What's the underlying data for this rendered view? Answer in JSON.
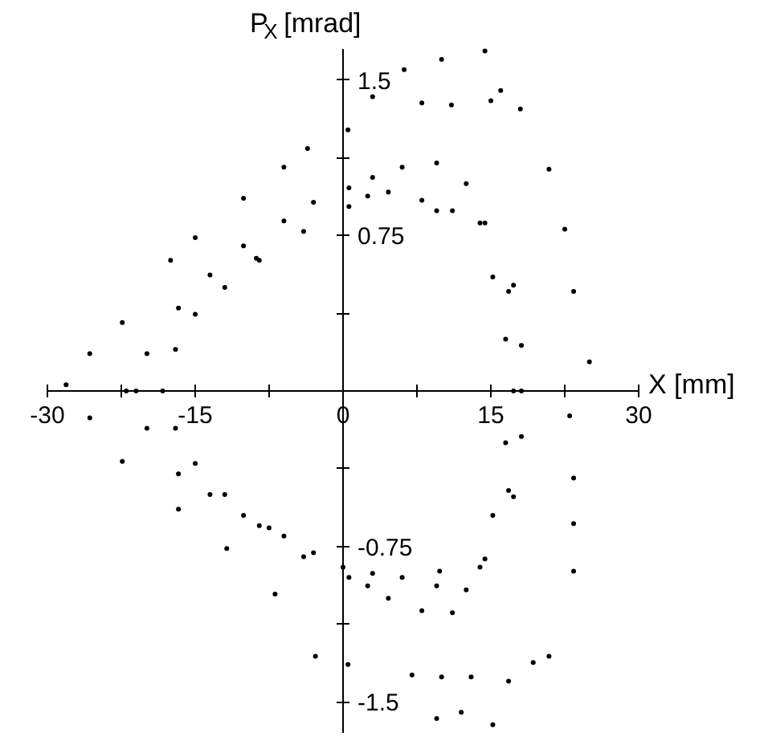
{
  "chart_data": {
    "type": "scatter",
    "xlabel": "X [mm]",
    "ylabel": "P$_{X}$ [mrad]",
    "xlim": [
      -30,
      30
    ],
    "ylim": [
      -1.65,
      1.65
    ],
    "xticks": [
      -30,
      {
        "value": -22.5,
        "label": null
      },
      -15,
      {
        "value": -7.5,
        "label": null
      },
      0,
      {
        "value": 7.5,
        "label": null
      },
      15,
      {
        "value": 22.5,
        "label": null
      },
      30
    ],
    "yticks": [
      -1.5,
      {
        "value": -1.125,
        "label": null
      },
      -0.75,
      {
        "value": -0.375,
        "label": null
      },
      {
        "value": 0.375,
        "label": null
      },
      0.75,
      {
        "value": 1.125,
        "label": null
      },
      1.5
    ],
    "grid": false,
    "marker": "circle",
    "series": [
      {
        "color": "#000000",
        "x": [
          -21,
          -19.9,
          -16.7,
          -13.5,
          -10.1,
          -6,
          -3,
          0.6,
          3,
          6,
          9.5,
          12.5,
          14.4,
          17.3,
          18.1,
          18.1,
          18.1,
          17.3,
          14.4,
          12.5,
          9.5,
          6,
          3,
          0,
          -3,
          -6,
          -10.1,
          -13.5,
          -16.7,
          -19.9
        ],
        "values": [
          0,
          0.18,
          0.4,
          0.56,
          0.7,
          0.82,
          0.91,
          0.98,
          1.03,
          1.08,
          1.1,
          1.0,
          0.81,
          0.51,
          0.22,
          0,
          -0.22,
          -0.51,
          -0.81,
          -0.96,
          -0.94,
          -0.9,
          -0.88,
          -0.85,
          -0.78,
          -0.7,
          -0.6,
          -0.5,
          -0.4,
          -0.18
        ]
      },
      {
        "color": "#000000",
        "x": [
          -18.3,
          -17,
          -15,
          -12,
          -8.5,
          -4,
          0.6,
          2.5,
          4.6,
          8,
          11.1,
          13.9,
          15.2,
          16.5,
          17.3,
          16.5,
          15.2,
          13.9,
          11.1,
          8,
          4.6,
          2.5,
          0.6,
          -4,
          -8.5,
          -12,
          -15,
          -17
        ],
        "values": [
          0,
          0.2,
          0.37,
          0.5,
          0.63,
          0.77,
          0.89,
          0.94,
          0.96,
          0.92,
          0.87,
          0.81,
          0.55,
          0.25,
          0,
          -0.25,
          -0.6,
          -0.85,
          -1.07,
          -1.06,
          -1.0,
          -0.94,
          -0.9,
          -0.8,
          -0.65,
          -0.5,
          -0.35,
          -0.18
        ]
      },
      {
        "color": "#000000",
        "x": [
          0.5,
          3,
          6.2,
          10,
          14.4,
          16,
          15,
          11,
          8,
          18,
          20.9,
          22.5,
          23.4,
          25,
          23,
          23.4,
          23.4,
          23.4,
          20.9,
          19.3,
          7,
          10,
          13,
          16.8,
          15.2,
          12,
          9.5
        ],
        "values": [
          1.26,
          1.42,
          1.55,
          1.6,
          1.64,
          1.45,
          1.4,
          1.38,
          1.39,
          1.36,
          1.07,
          0.78,
          0.48,
          0.14,
          -0.12,
          -0.42,
          -0.64,
          -0.87,
          -1.28,
          -1.31,
          -1.37,
          -1.38,
          -1.38,
          -1.4,
          -1.61,
          -1.55,
          -1.58
        ]
      },
      {
        "color": "#000000",
        "x": [
          -3.6,
          -6,
          -10.1,
          -15,
          -17.5,
          -22.4,
          -25.7,
          -28.1,
          -25.7,
          -22.4,
          -16.7,
          -11.8,
          -6.9,
          -2.8,
          0.5
        ],
        "values": [
          1.17,
          1.08,
          0.93,
          0.74,
          0.63,
          0.33,
          0.18,
          0.03,
          -0.13,
          -0.34,
          -0.57,
          -0.76,
          -0.98,
          -1.28,
          -1.32
        ]
      },
      {
        "color": "#000000",
        "x": [
          9.5,
          16.8,
          -22,
          16.8,
          9.8,
          -8.8,
          -7.5
        ],
        "values": [
          0.87,
          0.48,
          0,
          -0.48,
          -0.87,
          0.64,
          -0.66
        ]
      }
    ]
  }
}
